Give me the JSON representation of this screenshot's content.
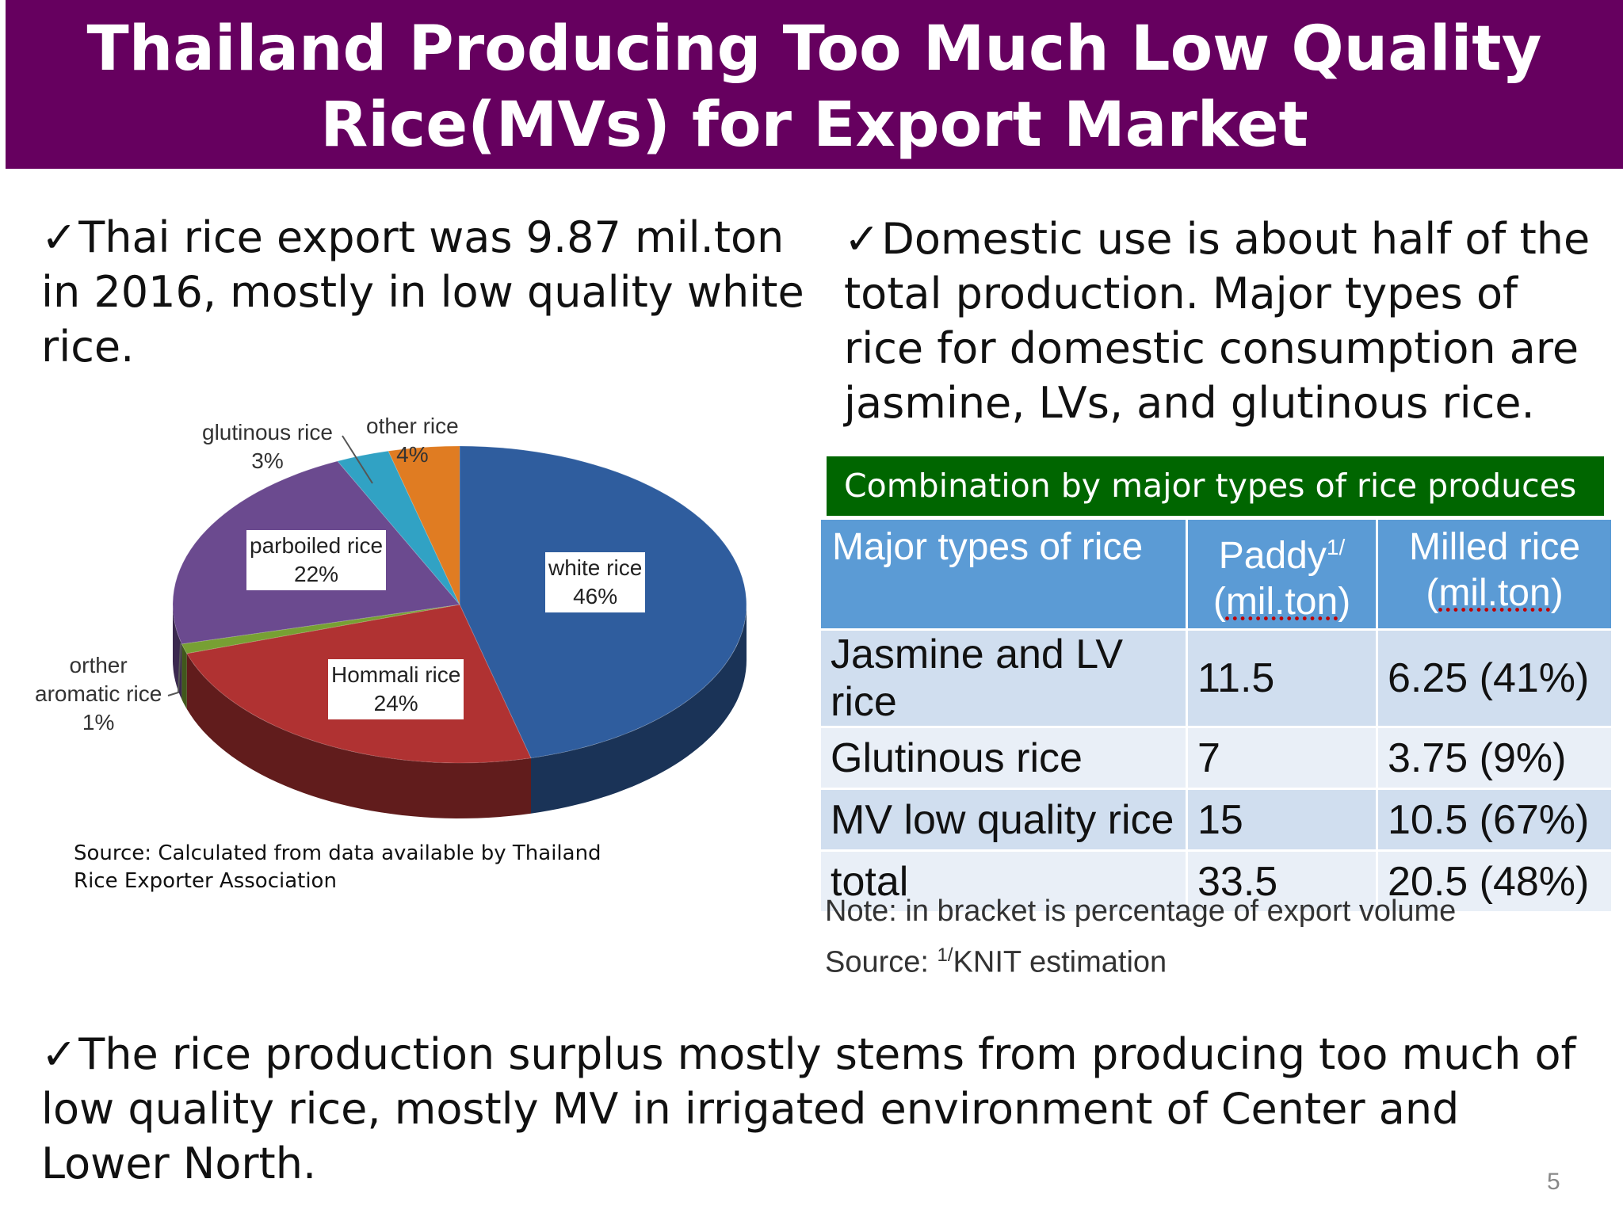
{
  "title": {
    "line1": "Thailand Producing Too Much Low Quality",
    "line2": "Rice(MVs) for Export Market"
  },
  "check_glyph": "✓",
  "bullets": {
    "left": "Thai rice export was 9.87 mil.ton in 2016, mostly in low quality white rice.",
    "right": "Domestic use is about half of the total production. Major types of rice for domestic consumption are jasmine, LVs, and glutinous rice.",
    "bottom": "The rice production surplus  mostly stems from producing too much of low quality rice, mostly MV in irrigated environment of Center  and Lower North."
  },
  "chart_data": {
    "type": "pie",
    "slices": [
      {
        "label": "white rice",
        "value": 46,
        "value_label": "46%",
        "color": "#2f5d9e"
      },
      {
        "label": "Hommali rice",
        "value": 24,
        "value_label": "24%",
        "color": "#b03232"
      },
      {
        "label": "orther aromatic rice",
        "value": 1,
        "value_label": "1%",
        "color": "#77a033"
      },
      {
        "label": "parboiled rice",
        "value": 22,
        "value_label": "22%",
        "color": "#6b4a8f"
      },
      {
        "label": "glutinous rice",
        "value": 3,
        "value_label": "3%",
        "color": "#31a2c4"
      },
      {
        "label": "other rice",
        "value": 4,
        "value_label": "4%",
        "color": "#e07c22"
      }
    ]
  },
  "pie_labels": {
    "glutinous": {
      "name": "glutinous rice",
      "pct": "3%"
    },
    "other": {
      "name": "other rice",
      "pct": "4%"
    },
    "parboiled": {
      "name": "parboiled rice",
      "pct": "22%"
    },
    "white": {
      "name": "white rice",
      "pct": "46%"
    },
    "orther_line1": "orther",
    "orther_line2": "aromatic rice",
    "orther_pct": "1%",
    "hommali": {
      "name": "Hommali rice",
      "pct": "24%"
    }
  },
  "source_left": "Source: Calculated from data available by Thailand Rice Exporter Association",
  "table": {
    "caption": "Combination by major types of rice produces",
    "headers": {
      "col1": "Major types of rice",
      "col2_main": "Paddy",
      "col2_sup": "1/",
      "col2_unit": "mil.ton",
      "col3_main": "Milled rice",
      "col3_unit": "mil.ton"
    },
    "rows": [
      {
        "type": "Jasmine and LV rice",
        "paddy": "11.5",
        "milled": "6.25 (41%)"
      },
      {
        "type": "Glutinous rice",
        "paddy": "7",
        "milled": "3.75 (9%)"
      },
      {
        "type": "MV low quality rice",
        "paddy": "15",
        "milled": "10.5 (67%)"
      },
      {
        "type": "total",
        "paddy": "33.5",
        "milled": "20.5 (48%)"
      }
    ],
    "note": "Note: in bracket is percentage of export volume",
    "source_prefix": "Source: ",
    "source_sup": "1/",
    "source_text": "KNIT estimation"
  },
  "page_number": "5"
}
